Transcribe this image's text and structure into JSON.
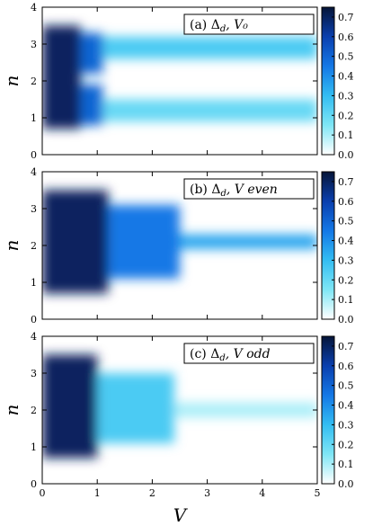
{
  "figure": {
    "x_axis_label": "V",
    "y_axis_label": "n"
  },
  "chart_data": [
    {
      "type": "heatmap",
      "title": "(a) Δ_d, V₀",
      "title_parts": {
        "label": "(a)",
        "symbol": "Δ",
        "subscript": "d",
        "rest": ", V₀"
      },
      "xlabel": "",
      "ylabel": "n",
      "xlim": [
        0,
        5
      ],
      "ylim": [
        0,
        4
      ],
      "x_ticks": [],
      "y_ticks": [
        "0",
        "1",
        "2",
        "3",
        "4"
      ],
      "colorbar": {
        "range": [
          0,
          0.75
        ],
        "ticks": [
          "0.0",
          "0.1",
          "0.2",
          "0.3",
          "0.4",
          "0.5",
          "0.6",
          "0.7"
        ]
      },
      "colormap": [
        "#ffffff",
        "#7fe6f5",
        "#33bdf2",
        "#1478e6",
        "#0a3fae",
        "#061538"
      ],
      "grid": false,
      "regions": [
        {
          "x_range": [
            0,
            0.7
          ],
          "n_range": [
            0.7,
            3.5
          ],
          "value": 0.7
        },
        {
          "x_range": [
            0.7,
            1.1
          ],
          "n_range": [
            0.8,
            1.9
          ],
          "value": 0.5
        },
        {
          "x_range": [
            0.7,
            1.1
          ],
          "n_range": [
            2.2,
            3.3
          ],
          "value": 0.5
        },
        {
          "x_range": [
            1.1,
            5
          ],
          "n_range": [
            0.9,
            1.5
          ],
          "value": 0.2
        },
        {
          "x_range": [
            1.1,
            5
          ],
          "n_range": [
            2.6,
            3.2
          ],
          "value": 0.25
        }
      ]
    },
    {
      "type": "heatmap",
      "title": "(b) Δ_d, V even",
      "title_parts": {
        "label": "(b)",
        "symbol": "Δ",
        "subscript": "d",
        "rest": ", V even"
      },
      "xlabel": "",
      "ylabel": "n",
      "xlim": [
        0,
        5
      ],
      "ylim": [
        0,
        4
      ],
      "x_ticks": [],
      "y_ticks": [
        "0",
        "1",
        "2",
        "3",
        "4"
      ],
      "colorbar": {
        "range": [
          0,
          0.75
        ],
        "ticks": [
          "0.0",
          "0.1",
          "0.2",
          "0.3",
          "0.4",
          "0.5",
          "0.6",
          "0.7"
        ]
      },
      "colormap": [
        "#ffffff",
        "#7fe6f5",
        "#33bdf2",
        "#1478e6",
        "#0a3fae",
        "#061538"
      ],
      "grid": false,
      "regions": [
        {
          "x_range": [
            0,
            1.2
          ],
          "n_range": [
            0.7,
            3.5
          ],
          "value": 0.7
        },
        {
          "x_range": [
            1.2,
            2.5
          ],
          "n_range": [
            1.1,
            3.1
          ],
          "value": 0.45
        },
        {
          "x_range": [
            2.5,
            5
          ],
          "n_range": [
            1.9,
            2.3
          ],
          "value": 0.35
        }
      ]
    },
    {
      "type": "heatmap",
      "title": "(c) Δ_d, V odd",
      "title_parts": {
        "label": "(c)",
        "symbol": "Δ",
        "subscript": "d",
        "rest": ", V odd"
      },
      "xlabel": "V",
      "ylabel": "n",
      "xlim": [
        0,
        5
      ],
      "ylim": [
        0,
        4
      ],
      "x_ticks": [
        "0",
        "1",
        "2",
        "3",
        "4",
        "5"
      ],
      "y_ticks": [
        "0",
        "1",
        "2",
        "3",
        "4"
      ],
      "colorbar": {
        "range": [
          0,
          0.75
        ],
        "ticks": [
          "0.0",
          "0.1",
          "0.2",
          "0.3",
          "0.4",
          "0.5",
          "0.6",
          "0.7"
        ]
      },
      "colormap": [
        "#ffffff",
        "#7fe6f5",
        "#33bdf2",
        "#1478e6",
        "#0a3fae",
        "#061538"
      ],
      "grid": false,
      "regions": [
        {
          "x_range": [
            0,
            1.0
          ],
          "n_range": [
            0.7,
            3.5
          ],
          "value": 0.7
        },
        {
          "x_range": [
            1.0,
            2.4
          ],
          "n_range": [
            1.1,
            3.0
          ],
          "value": 0.25
        },
        {
          "x_range": [
            2.4,
            5
          ],
          "n_range": [
            1.8,
            2.2
          ],
          "value": 0.1
        }
      ]
    }
  ]
}
